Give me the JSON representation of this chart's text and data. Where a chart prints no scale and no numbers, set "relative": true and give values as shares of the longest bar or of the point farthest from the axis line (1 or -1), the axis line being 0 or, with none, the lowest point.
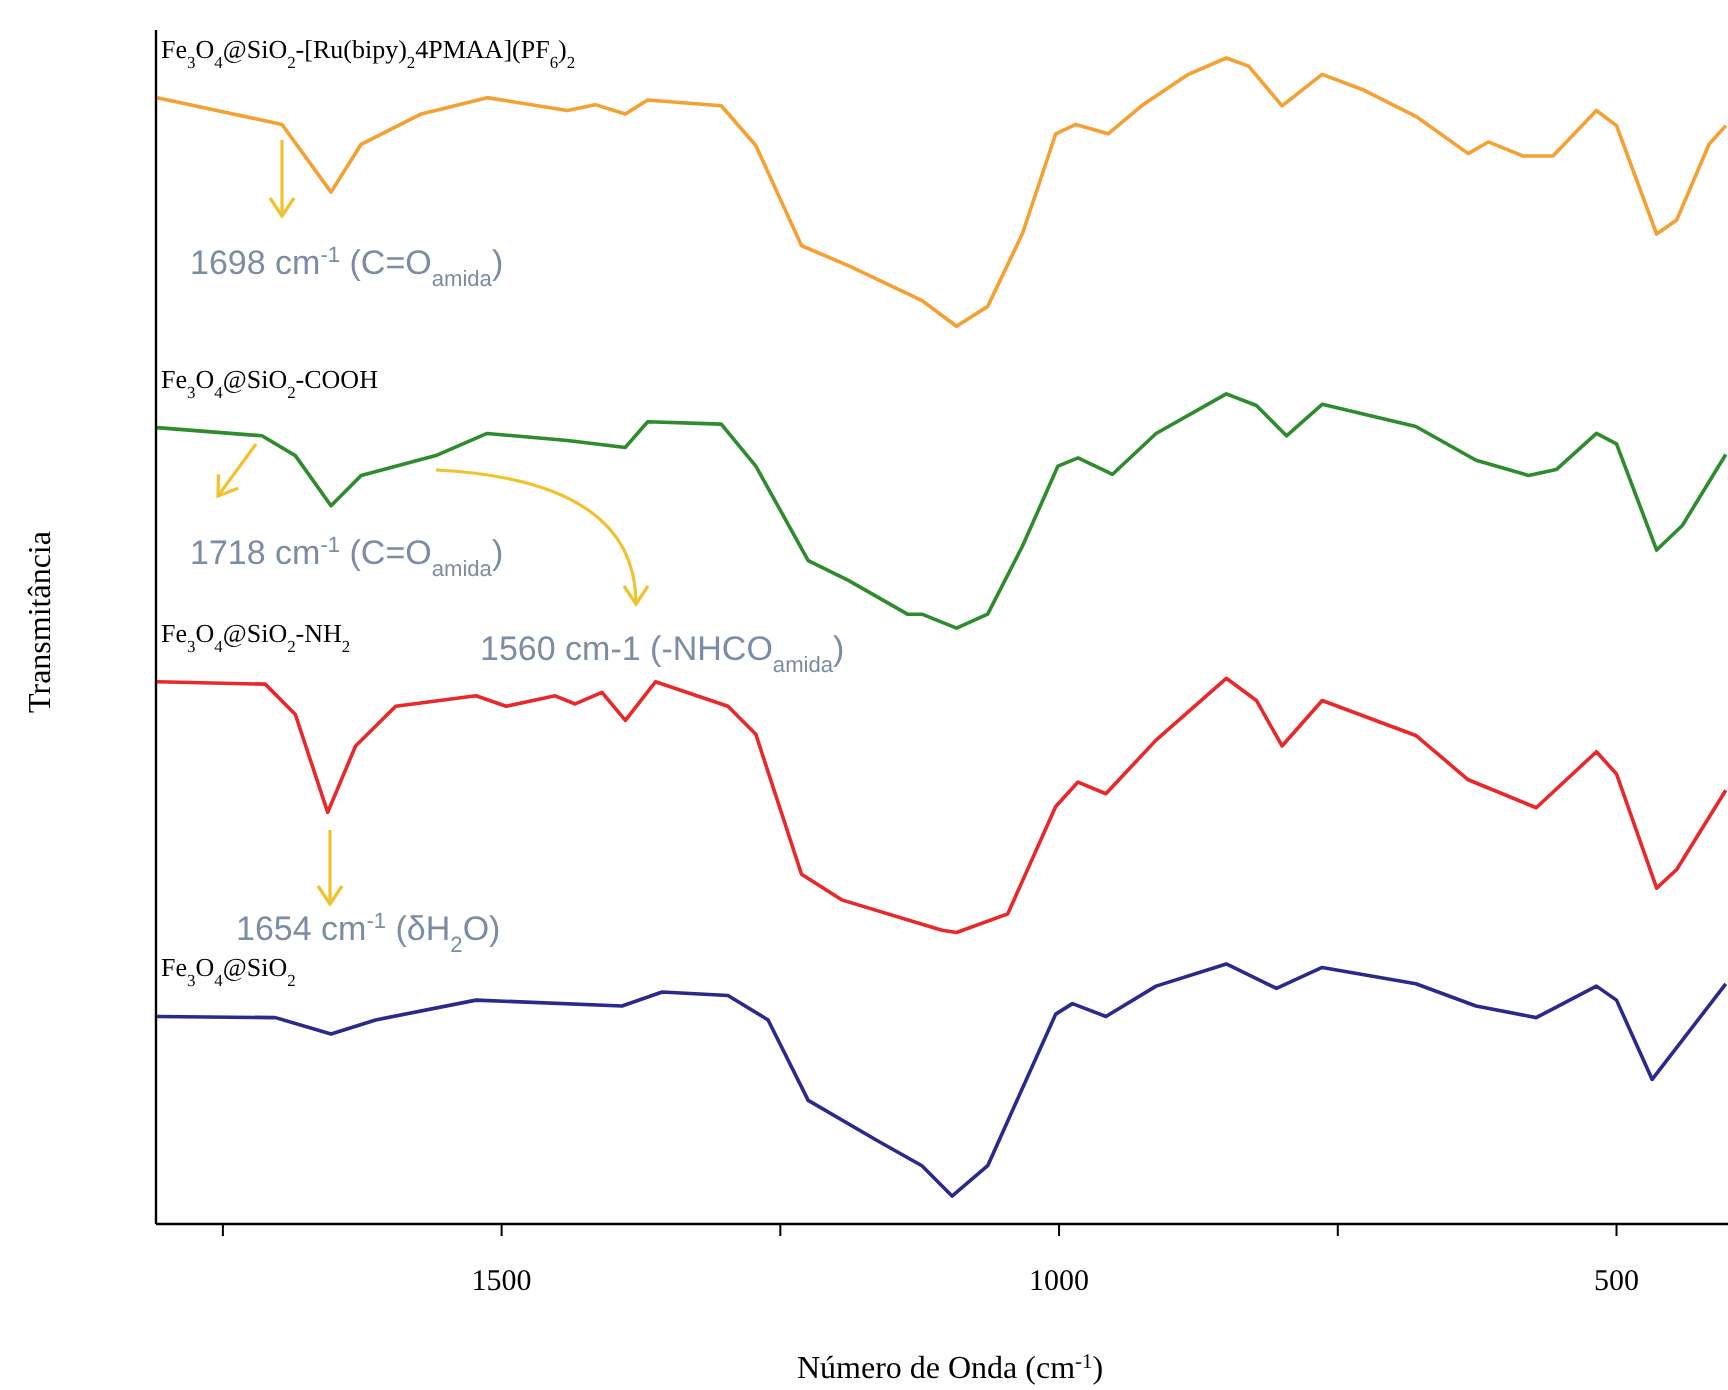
{
  "chart_data": {
    "type": "line",
    "relative": true,
    "xlabel": "Número de Onda (cm$^{-1}$)",
    "ylabel": "Transmitância",
    "xlim": [
      1810,
      400
    ],
    "xticks": [
      {
        "value": 1750,
        "label": null
      },
      1500,
      {
        "value": 1250,
        "label": null
      },
      1000,
      {
        "value": 750,
        "label": null
      },
      500
    ],
    "grid": false,
    "legend": false,
    "line_style": "solid",
    "marker": "none",
    "annotations": [
      "1698 cm$^{-1}$ (C=O$_{amida}$)",
      "1718 cm$^{-1}$ (C=O$_{amida}$)",
      "1560 cm-1 (-NHCO$_{amida}$)",
      "1654 cm$^{-1}$ (δH$_{2}$O)"
    ],
    "series": [
      {
        "name": "Fe$_{3}$O$_{4}$@SiO$_{2}$-[Ru(bipy)$_{2}$4PMAA](PF$_{6}$)$_{2}$",
        "color": "#f5a032",
        "x": [
          1809,
          1697,
          1653,
          1626,
          1572,
          1513,
          1441,
          1416,
          1389,
          1369,
          1303,
          1272,
          1231,
          1189,
          1136,
          1123,
          1092,
          1064,
          1033,
          1003,
          985,
          956,
          926,
          884,
          850,
          830,
          800,
          764,
          728,
          680,
          633,
          615,
          584,
          557,
          518,
          500,
          464,
          446,
          417,
          402
        ],
        "values": [
          0.966,
          0.943,
          0.885,
          0.926,
          0.952,
          0.966,
          0.955,
          0.96,
          0.952,
          0.964,
          0.959,
          0.925,
          0.839,
          0.822,
          0.798,
          0.792,
          0.77,
          0.787,
          0.849,
          0.935,
          0.943,
          0.935,
          0.959,
          0.986,
          1.0,
          0.993,
          0.959,
          0.986,
          0.973,
          0.95,
          0.918,
          0.928,
          0.916,
          0.916,
          0.955,
          0.942,
          0.849,
          0.861,
          0.926,
          0.942
        ]
      },
      {
        "name": "Fe$_{3}$O$_{4}$@SiO$_{2}$-COOH",
        "color": "#2e8b2e",
        "x": [
          1809,
          1715,
          1685,
          1653,
          1626,
          1559,
          1513,
          1441,
          1389,
          1369,
          1303,
          1272,
          1225,
          1189,
          1136,
          1123,
          1092,
          1064,
          1033,
          1001,
          983,
          952,
          913,
          850,
          823,
          796,
          764,
          680,
          626,
          579,
          554,
          518,
          500,
          464,
          441,
          402
        ],
        "values": [
          0.683,
          0.676,
          0.659,
          0.616,
          0.642,
          0.659,
          0.678,
          0.672,
          0.666,
          0.688,
          0.686,
          0.65,
          0.569,
          0.552,
          0.523,
          0.523,
          0.511,
          0.523,
          0.581,
          0.65,
          0.657,
          0.643,
          0.678,
          0.712,
          0.702,
          0.676,
          0.703,
          0.684,
          0.655,
          0.642,
          0.647,
          0.678,
          0.669,
          0.578,
          0.599,
          0.66
        ]
      },
      {
        "name": "Fe$_{3}$O$_{4}$@SiO$_{2}$-NH$_{2}$",
        "color": "#e8282a",
        "x": [
          1809,
          1712,
          1685,
          1656,
          1631,
          1595,
          1523,
          1496,
          1452,
          1434,
          1410,
          1389,
          1362,
          1297,
          1272,
          1231,
          1195,
          1105,
          1092,
          1046,
          1003,
          983,
          958,
          913,
          850,
          823,
          800,
          764,
          680,
          633,
          572,
          518,
          500,
          464,
          446,
          402
        ],
        "values": [
          0.465,
          0.463,
          0.437,
          0.353,
          0.41,
          0.444,
          0.453,
          0.444,
          0.453,
          0.446,
          0.456,
          0.432,
          0.465,
          0.444,
          0.42,
          0.3,
          0.278,
          0.252,
          0.25,
          0.266,
          0.358,
          0.379,
          0.369,
          0.415,
          0.468,
          0.449,
          0.41,
          0.449,
          0.419,
          0.381,
          0.357,
          0.405,
          0.386,
          0.288,
          0.304,
          0.372
        ]
      },
      {
        "name": "Fe$_{3}$O$_{4}$@SiO$_{2}$",
        "color": "#2a2a8c",
        "x": [
          1809,
          1703,
          1653,
          1613,
          1523,
          1392,
          1356,
          1297,
          1261,
          1225,
          1164,
          1123,
          1096,
          1064,
          1003,
          988,
          958,
          913,
          850,
          805,
          764,
          680,
          626,
          572,
          518,
          500,
          468,
          402
        ],
        "values": [
          0.178,
          0.177,
          0.163,
          0.175,
          0.192,
          0.187,
          0.199,
          0.196,
          0.175,
          0.106,
          0.072,
          0.05,
          0.024,
          0.05,
          0.18,
          0.189,
          0.178,
          0.204,
          0.223,
          0.202,
          0.22,
          0.206,
          0.187,
          0.177,
          0.204,
          0.192,
          0.124,
          0.206
        ]
      }
    ]
  }
}
